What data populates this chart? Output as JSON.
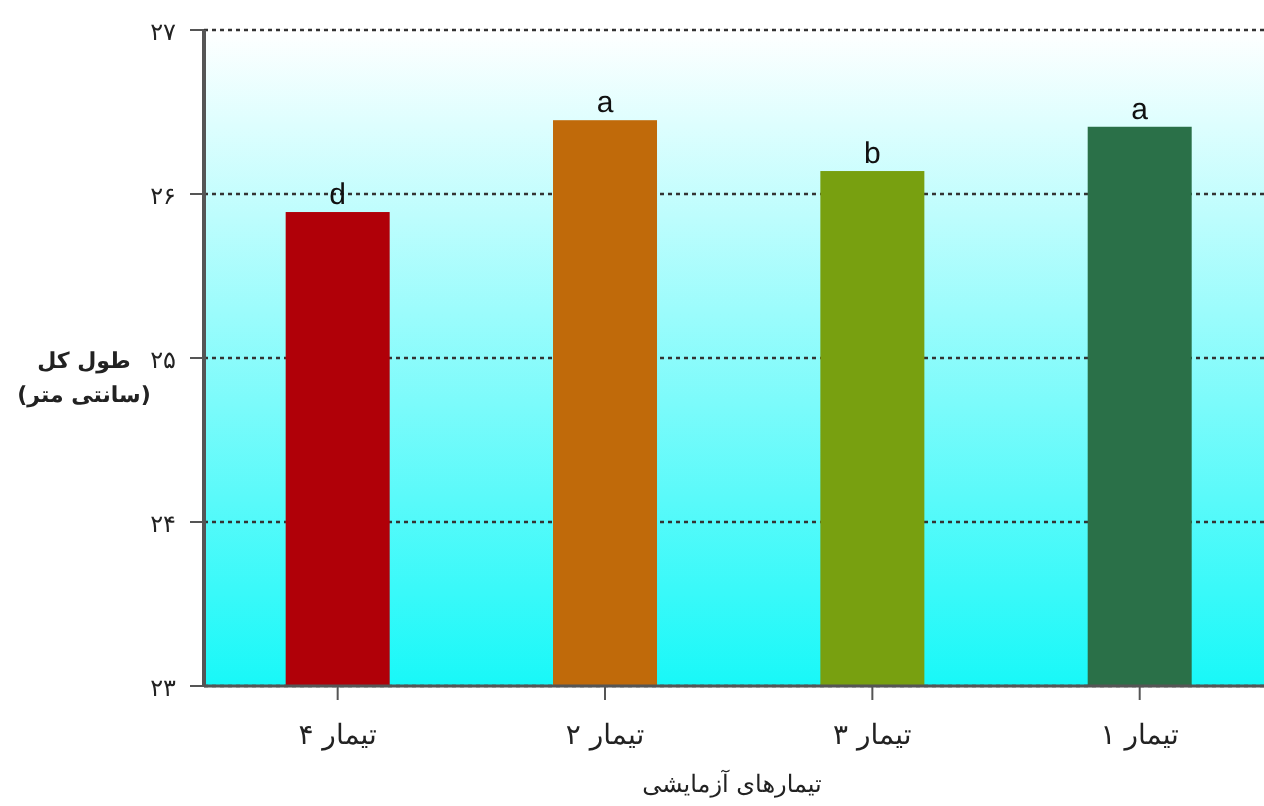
{
  "chart_data": {
    "type": "bar",
    "xlabel": "تیمارهای آزمایشی",
    "ylabel": "طول کل\n(سانتی متر)",
    "categories": [
      "تیمار ۴",
      "تیمار ۲",
      "تیمار ۳",
      "تیمار ۱"
    ],
    "values": [
      25.89,
      26.45,
      26.14,
      26.41
    ],
    "colors": [
      "#b00008",
      "#c06a0a",
      "#78a010",
      "#2a7048"
    ],
    "ylim": [
      23,
      27
    ],
    "yticks": [
      {
        "value": 23,
        "label": "۲۳"
      },
      {
        "value": 24,
        "label": "۲۴"
      },
      {
        "value": 25,
        "label": "۲۵"
      },
      {
        "value": 26,
        "label": "۲۶"
      },
      {
        "value": 27,
        "label": "۲۷"
      }
    ],
    "grid": "y",
    "annotations": [
      {
        "text": "d",
        "x": "تیمار ۴",
        "y": 25.89
      },
      {
        "text": "a",
        "x": "تیمار ۲",
        "y": 26.45
      },
      {
        "text": "b",
        "x": "تیمار ۳",
        "y": 26.14
      },
      {
        "text": "a",
        "x": "تیمار ۱",
        "y": 26.41
      }
    ]
  }
}
